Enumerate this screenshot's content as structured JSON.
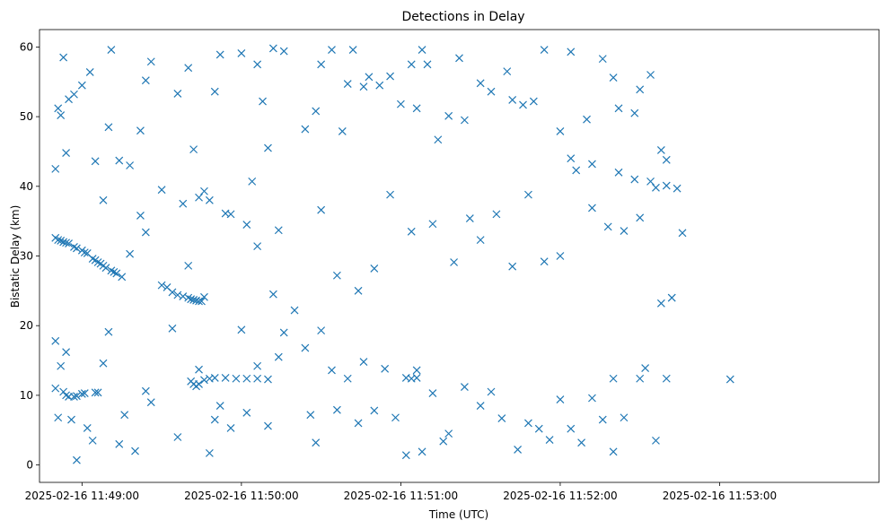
{
  "chart_data": {
    "type": "scatter",
    "title": "Detections in Delay",
    "xlabel": "Time (UTC)",
    "ylabel": "Bistatic Delay (km)",
    "x_unit": "time",
    "x_ticks": [
      "2025-02-16 11:49:00",
      "2025-02-16 11:50:00",
      "2025-02-16 11:51:00",
      "2025-02-16 11:52:00",
      "2025-02-16 11:53:00"
    ],
    "y_ticks": [
      0,
      10,
      20,
      30,
      40,
      50,
      60
    ],
    "xlim": [
      "2025-02-16 11:48:44",
      "2025-02-16 11:54:00"
    ],
    "ylim": [
      -2.5,
      62.5
    ],
    "grid": false,
    "marker": "x",
    "color": "#1f77b4",
    "series": [
      {
        "points": [
          [
            "2025-02-16 11:48:50",
            32.6
          ],
          [
            "2025-02-16 11:48:51",
            32.3
          ],
          [
            "2025-02-16 11:48:52",
            32.2
          ],
          [
            "2025-02-16 11:48:53",
            32.0
          ],
          [
            "2025-02-16 11:48:54",
            31.9
          ],
          [
            "2025-02-16 11:48:55",
            31.8
          ],
          [
            "2025-02-16 11:48:57",
            31.3
          ],
          [
            "2025-02-16 11:48:58",
            31.1
          ],
          [
            "2025-02-16 11:49:00",
            30.8
          ],
          [
            "2025-02-16 11:49:01",
            30.5
          ],
          [
            "2025-02-16 11:49:02",
            30.4
          ],
          [
            "2025-02-16 11:49:04",
            29.6
          ],
          [
            "2025-02-16 11:49:05",
            29.4
          ],
          [
            "2025-02-16 11:49:06",
            29.1
          ],
          [
            "2025-02-16 11:49:07",
            28.9
          ],
          [
            "2025-02-16 11:49:08",
            28.6
          ],
          [
            "2025-02-16 11:49:09",
            28.3
          ],
          [
            "2025-02-16 11:49:11",
            27.9
          ],
          [
            "2025-02-16 11:49:12",
            27.7
          ],
          [
            "2025-02-16 11:49:13",
            27.5
          ],
          [
            "2025-02-16 11:49:15",
            27.0
          ],
          [
            "2025-02-16 11:48:50",
            11.0
          ],
          [
            "2025-02-16 11:48:51",
            6.8
          ],
          [
            "2025-02-16 11:48:53",
            10.5
          ],
          [
            "2025-02-16 11:48:54",
            10.0
          ],
          [
            "2025-02-16 11:48:55",
            9.8
          ],
          [
            "2025-02-16 11:48:57",
            9.8
          ],
          [
            "2025-02-16 11:48:58",
            9.9
          ],
          [
            "2025-02-16 11:49:00",
            10.2
          ],
          [
            "2025-02-16 11:49:01",
            10.3
          ],
          [
            "2025-02-16 11:49:05",
            10.4
          ],
          [
            "2025-02-16 11:49:06",
            10.4
          ],
          [
            "2025-02-16 11:49:32",
            25.5
          ],
          [
            "2025-02-16 11:49:34",
            24.8
          ],
          [
            "2025-02-16 11:49:36",
            24.4
          ],
          [
            "2025-02-16 11:49:38",
            24.2
          ],
          [
            "2025-02-16 11:49:40",
            24.0
          ],
          [
            "2025-02-16 11:49:41",
            23.8
          ],
          [
            "2025-02-16 11:49:42",
            23.7
          ],
          [
            "2025-02-16 11:49:43",
            23.6
          ],
          [
            "2025-02-16 11:49:44",
            23.5
          ],
          [
            "2025-02-16 11:49:45",
            23.5
          ],
          [
            "2025-02-16 11:49:46",
            24.1
          ],
          [
            "2025-02-16 11:49:41",
            12.0
          ],
          [
            "2025-02-16 11:49:42",
            11.6
          ],
          [
            "2025-02-16 11:49:43",
            11.3
          ],
          [
            "2025-02-16 11:49:44",
            11.6
          ],
          [
            "2025-02-16 11:49:46",
            12.2
          ],
          [
            "2025-02-16 11:49:48",
            12.4
          ],
          [
            "2025-02-16 11:49:50",
            12.5
          ],
          [
            "2025-02-16 11:49:54",
            12.5
          ],
          [
            "2025-02-16 11:49:58",
            12.4
          ],
          [
            "2025-02-16 11:50:02",
            12.4
          ],
          [
            "2025-02-16 11:50:06",
            12.4
          ],
          [
            "2025-02-16 11:50:10",
            12.3
          ],
          [
            "2025-02-16 11:51:02",
            12.5
          ],
          [
            "2025-02-16 11:51:04",
            12.4
          ],
          [
            "2025-02-16 11:51:06",
            12.5
          ],
          [
            "2025-02-16 11:52:20",
            12.4
          ],
          [
            "2025-02-16 11:52:30",
            12.4
          ],
          [
            "2025-02-16 11:52:40",
            12.4
          ],
          [
            "2025-02-16 11:53:04",
            12.3
          ],
          [
            "2025-02-16 11:52:04",
            44.0
          ],
          [
            "2025-02-16 11:52:12",
            43.2
          ],
          [
            "2025-02-16 11:52:22",
            42.0
          ],
          [
            "2025-02-16 11:52:28",
            41.0
          ],
          [
            "2025-02-16 11:52:34",
            40.7
          ],
          [
            "2025-02-16 11:52:40",
            40.1
          ],
          [
            "2025-02-16 11:52:44",
            39.7
          ],
          [
            "2025-02-16 11:48:50",
            42.5
          ],
          [
            "2025-02-16 11:48:51",
            51.2
          ],
          [
            "2025-02-16 11:48:52",
            50.2
          ],
          [
            "2025-02-16 11:48:53",
            58.5
          ],
          [
            "2025-02-16 11:48:54",
            44.8
          ],
          [
            "2025-02-16 11:48:55",
            52.5
          ],
          [
            "2025-02-16 11:48:57",
            53.2
          ],
          [
            "2025-02-16 11:49:00",
            54.5
          ],
          [
            "2025-02-16 11:49:03",
            56.4
          ],
          [
            "2025-02-16 11:49:05",
            43.6
          ],
          [
            "2025-02-16 11:49:08",
            38.0
          ],
          [
            "2025-02-16 11:49:10",
            48.5
          ],
          [
            "2025-02-16 11:49:11",
            59.6
          ],
          [
            "2025-02-16 11:49:14",
            43.7
          ],
          [
            "2025-02-16 11:49:18",
            43.0
          ],
          [
            "2025-02-16 11:49:22",
            48.0
          ],
          [
            "2025-02-16 11:49:24",
            55.2
          ],
          [
            "2025-02-16 11:49:26",
            57.9
          ],
          [
            "2025-02-16 11:49:30",
            39.5
          ],
          [
            "2025-02-16 11:49:36",
            53.3
          ],
          [
            "2025-02-16 11:49:40",
            57.0
          ],
          [
            "2025-02-16 11:49:42",
            45.3
          ],
          [
            "2025-02-16 11:49:44",
            38.4
          ],
          [
            "2025-02-16 11:49:46",
            39.3
          ],
          [
            "2025-02-16 11:49:50",
            53.6
          ],
          [
            "2025-02-16 11:49:52",
            58.9
          ],
          [
            "2025-02-16 11:49:56",
            36.0
          ],
          [
            "2025-02-16 11:50:00",
            59.1
          ],
          [
            "2025-02-16 11:50:04",
            40.7
          ],
          [
            "2025-02-16 11:50:06",
            57.5
          ],
          [
            "2025-02-16 11:50:08",
            52.2
          ],
          [
            "2025-02-16 11:50:10",
            45.5
          ],
          [
            "2025-02-16 11:50:12",
            59.8
          ],
          [
            "2025-02-16 11:50:14",
            33.7
          ],
          [
            "2025-02-16 11:50:16",
            59.4
          ],
          [
            "2025-02-16 11:50:24",
            48.2
          ],
          [
            "2025-02-16 11:50:28",
            50.8
          ],
          [
            "2025-02-16 11:50:30",
            57.5
          ],
          [
            "2025-02-16 11:50:34",
            59.6
          ],
          [
            "2025-02-16 11:50:38",
            47.9
          ],
          [
            "2025-02-16 11:50:40",
            54.7
          ],
          [
            "2025-02-16 11:50:42",
            59.6
          ],
          [
            "2025-02-16 11:50:46",
            54.3
          ],
          [
            "2025-02-16 11:50:48",
            55.7
          ],
          [
            "2025-02-16 11:50:52",
            54.5
          ],
          [
            "2025-02-16 11:50:56",
            55.8
          ],
          [
            "2025-02-16 11:51:00",
            51.8
          ],
          [
            "2025-02-16 11:51:04",
            57.5
          ],
          [
            "2025-02-16 11:51:06",
            51.2
          ],
          [
            "2025-02-16 11:51:08",
            59.6
          ],
          [
            "2025-02-16 11:51:10",
            57.5
          ],
          [
            "2025-02-16 11:51:14",
            46.7
          ],
          [
            "2025-02-16 11:51:18",
            50.1
          ],
          [
            "2025-02-16 11:51:22",
            58.4
          ],
          [
            "2025-02-16 11:51:24",
            49.5
          ],
          [
            "2025-02-16 11:51:30",
            54.8
          ],
          [
            "2025-02-16 11:51:34",
            53.6
          ],
          [
            "2025-02-16 11:51:40",
            56.5
          ],
          [
            "2025-02-16 11:51:42",
            52.4
          ],
          [
            "2025-02-16 11:51:46",
            51.7
          ],
          [
            "2025-02-16 11:51:50",
            52.2
          ],
          [
            "2025-02-16 11:51:54",
            59.6
          ],
          [
            "2025-02-16 11:52:00",
            47.9
          ],
          [
            "2025-02-16 11:52:04",
            59.3
          ],
          [
            "2025-02-16 11:52:10",
            49.6
          ],
          [
            "2025-02-16 11:52:16",
            58.3
          ],
          [
            "2025-02-16 11:52:20",
            55.6
          ],
          [
            "2025-02-16 11:52:22",
            51.2
          ],
          [
            "2025-02-16 11:52:28",
            50.5
          ],
          [
            "2025-02-16 11:52:30",
            53.9
          ],
          [
            "2025-02-16 11:52:34",
            56.0
          ],
          [
            "2025-02-16 11:52:38",
            45.2
          ],
          [
            "2025-02-16 11:52:40",
            43.8
          ],
          [
            "2025-02-16 11:52:46",
            33.3
          ],
          [
            "2025-02-16 11:48:50",
            17.8
          ],
          [
            "2025-02-16 11:48:52",
            14.2
          ],
          [
            "2025-02-16 11:48:54",
            16.2
          ],
          [
            "2025-02-16 11:48:56",
            6.5
          ],
          [
            "2025-02-16 11:48:58",
            0.7
          ],
          [
            "2025-02-16 11:49:02",
            5.3
          ],
          [
            "2025-02-16 11:49:04",
            3.5
          ],
          [
            "2025-02-16 11:49:08",
            14.6
          ],
          [
            "2025-02-16 11:49:10",
            19.1
          ],
          [
            "2025-02-16 11:49:14",
            3.0
          ],
          [
            "2025-02-16 11:49:16",
            7.2
          ],
          [
            "2025-02-16 11:49:20",
            2.0
          ],
          [
            "2025-02-16 11:49:24",
            10.6
          ],
          [
            "2025-02-16 11:49:26",
            9.0
          ],
          [
            "2025-02-16 11:49:30",
            25.8
          ],
          [
            "2025-02-16 11:49:34",
            19.6
          ],
          [
            "2025-02-16 11:49:36",
            4.0
          ],
          [
            "2025-02-16 11:49:40",
            28.6
          ],
          [
            "2025-02-16 11:49:44",
            13.7
          ],
          [
            "2025-02-16 11:49:48",
            1.7
          ],
          [
            "2025-02-16 11:49:50",
            6.5
          ],
          [
            "2025-02-16 11:49:52",
            8.5
          ],
          [
            "2025-02-16 11:49:56",
            5.3
          ],
          [
            "2025-02-16 11:50:00",
            19.4
          ],
          [
            "2025-02-16 11:50:02",
            7.5
          ],
          [
            "2025-02-16 11:50:06",
            14.2
          ],
          [
            "2025-02-16 11:50:10",
            5.6
          ],
          [
            "2025-02-16 11:50:14",
            15.5
          ],
          [
            "2025-02-16 11:50:16",
            19.0
          ],
          [
            "2025-02-16 11:50:20",
            22.2
          ],
          [
            "2025-02-16 11:50:24",
            16.8
          ],
          [
            "2025-02-16 11:50:26",
            7.2
          ],
          [
            "2025-02-16 11:50:28",
            3.2
          ],
          [
            "2025-02-16 11:50:30",
            19.3
          ],
          [
            "2025-02-16 11:50:34",
            13.6
          ],
          [
            "2025-02-16 11:50:36",
            7.9
          ],
          [
            "2025-02-16 11:50:40",
            12.4
          ],
          [
            "2025-02-16 11:50:44",
            6.0
          ],
          [
            "2025-02-16 11:50:46",
            14.8
          ],
          [
            "2025-02-16 11:50:50",
            7.8
          ],
          [
            "2025-02-16 11:50:54",
            13.8
          ],
          [
            "2025-02-16 11:50:58",
            6.8
          ],
          [
            "2025-02-16 11:51:02",
            1.4
          ],
          [
            "2025-02-16 11:51:06",
            13.6
          ],
          [
            "2025-02-16 11:51:08",
            1.9
          ],
          [
            "2025-02-16 11:51:12",
            10.3
          ],
          [
            "2025-02-16 11:51:16",
            3.4
          ],
          [
            "2025-02-16 11:51:18",
            4.5
          ],
          [
            "2025-02-16 11:51:24",
            11.2
          ],
          [
            "2025-02-16 11:51:30",
            8.5
          ],
          [
            "2025-02-16 11:51:34",
            10.5
          ],
          [
            "2025-02-16 11:51:38",
            6.7
          ],
          [
            "2025-02-16 11:51:44",
            2.2
          ],
          [
            "2025-02-16 11:51:48",
            6.0
          ],
          [
            "2025-02-16 11:51:52",
            5.2
          ],
          [
            "2025-02-16 11:51:56",
            3.6
          ],
          [
            "2025-02-16 11:52:00",
            9.4
          ],
          [
            "2025-02-16 11:52:04",
            5.2
          ],
          [
            "2025-02-16 11:52:08",
            3.2
          ],
          [
            "2025-02-16 11:52:12",
            9.6
          ],
          [
            "2025-02-16 11:52:16",
            6.5
          ],
          [
            "2025-02-16 11:52:20",
            1.9
          ],
          [
            "2025-02-16 11:52:24",
            6.8
          ],
          [
            "2025-02-16 11:52:32",
            13.9
          ],
          [
            "2025-02-16 11:52:36",
            3.5
          ],
          [
            "2025-02-16 11:52:38",
            23.2
          ],
          [
            "2025-02-16 11:52:42",
            24.0
          ],
          [
            "2025-02-16 11:49:18",
            30.3
          ],
          [
            "2025-02-16 11:49:22",
            35.8
          ],
          [
            "2025-02-16 11:49:24",
            33.4
          ],
          [
            "2025-02-16 11:49:38",
            37.5
          ],
          [
            "2025-02-16 11:49:48",
            38.0
          ],
          [
            "2025-02-16 11:49:54",
            36.1
          ],
          [
            "2025-02-16 11:50:02",
            34.5
          ],
          [
            "2025-02-16 11:50:06",
            31.4
          ],
          [
            "2025-02-16 11:50:12",
            24.5
          ],
          [
            "2025-02-16 11:50:30",
            36.6
          ],
          [
            "2025-02-16 11:50:36",
            27.2
          ],
          [
            "2025-02-16 11:50:44",
            25.0
          ],
          [
            "2025-02-16 11:50:50",
            28.2
          ],
          [
            "2025-02-16 11:50:56",
            38.8
          ],
          [
            "2025-02-16 11:51:04",
            33.5
          ],
          [
            "2025-02-16 11:51:12",
            34.6
          ],
          [
            "2025-02-16 11:51:20",
            29.1
          ],
          [
            "2025-02-16 11:51:26",
            35.4
          ],
          [
            "2025-02-16 11:51:30",
            32.3
          ],
          [
            "2025-02-16 11:51:36",
            36.0
          ],
          [
            "2025-02-16 11:51:42",
            28.5
          ],
          [
            "2025-02-16 11:51:48",
            38.8
          ],
          [
            "2025-02-16 11:51:54",
            29.2
          ],
          [
            "2025-02-16 11:52:00",
            30.0
          ],
          [
            "2025-02-16 11:52:06",
            42.3
          ],
          [
            "2025-02-16 11:52:12",
            36.9
          ],
          [
            "2025-02-16 11:52:18",
            34.2
          ],
          [
            "2025-02-16 11:52:24",
            33.6
          ],
          [
            "2025-02-16 11:52:30",
            35.5
          ],
          [
            "2025-02-16 11:52:36",
            39.8
          ],
          [
            "2025-02-16 11:52:42",
            24.0
          ]
        ]
      }
    ]
  }
}
